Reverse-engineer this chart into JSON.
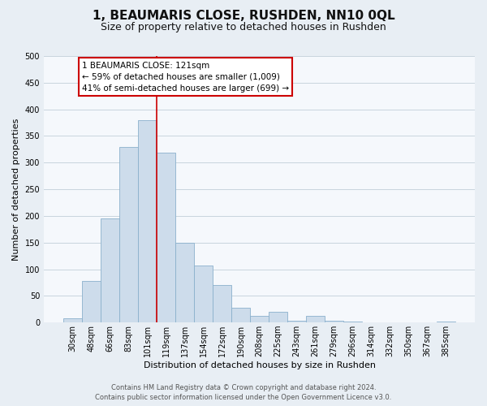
{
  "title": "1, BEAUMARIS CLOSE, RUSHDEN, NN10 0QL",
  "subtitle": "Size of property relative to detached houses in Rushden",
  "xlabel": "Distribution of detached houses by size in Rushden",
  "ylabel": "Number of detached properties",
  "bar_labels": [
    "30sqm",
    "48sqm",
    "66sqm",
    "83sqm",
    "101sqm",
    "119sqm",
    "137sqm",
    "154sqm",
    "172sqm",
    "190sqm",
    "208sqm",
    "225sqm",
    "243sqm",
    "261sqm",
    "279sqm",
    "296sqm",
    "314sqm",
    "332sqm",
    "350sqm",
    "367sqm",
    "385sqm"
  ],
  "bar_values": [
    8,
    78,
    196,
    330,
    380,
    318,
    150,
    107,
    70,
    28,
    12,
    20,
    3,
    12,
    4,
    2,
    0,
    0,
    1,
    0,
    2
  ],
  "bar_color": "#cddceb",
  "bar_edgecolor": "#8ab0cc",
  "vline_index": 5,
  "vline_color": "#cc0000",
  "ylim": [
    0,
    500
  ],
  "yticks": [
    0,
    50,
    100,
    150,
    200,
    250,
    300,
    350,
    400,
    450,
    500
  ],
  "annotation_title": "1 BEAUMARIS CLOSE: 121sqm",
  "annotation_line1": "← 59% of detached houses are smaller (1,009)",
  "annotation_line2": "41% of semi-detached houses are larger (699) →",
  "annotation_box_facecolor": "#ffffff",
  "annotation_box_edgecolor": "#cc0000",
  "footer_line1": "Contains HM Land Registry data © Crown copyright and database right 2024.",
  "footer_line2": "Contains public sector information licensed under the Open Government Licence v3.0.",
  "fig_facecolor": "#e8eef4",
  "plot_facecolor": "#f5f8fc",
  "grid_color": "#c8d4de",
  "title_fontsize": 11,
  "subtitle_fontsize": 9,
  "ylabel_fontsize": 8,
  "xlabel_fontsize": 8,
  "tick_fontsize": 7,
  "annotation_fontsize": 7.5,
  "footer_fontsize": 6
}
